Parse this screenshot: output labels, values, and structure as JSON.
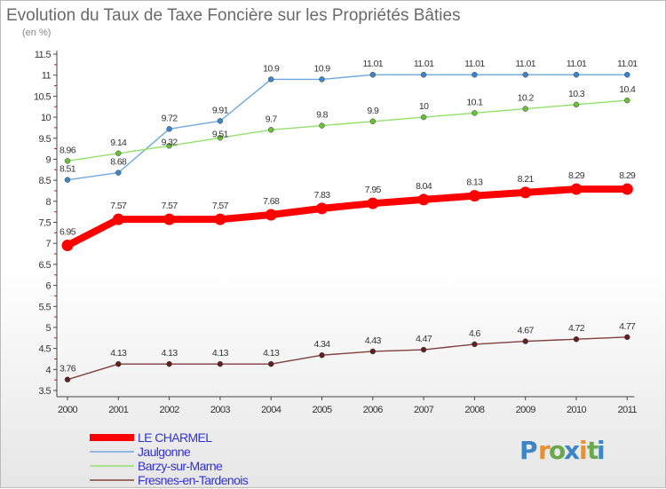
{
  "chart_data": {
    "type": "line",
    "title": "Evolution du Taux de Taxe Foncière sur les Propriétés Bâties",
    "subtitle": "(en %)",
    "xlabel": "",
    "ylabel": "",
    "x": [
      "2000",
      "2001",
      "2002",
      "2003",
      "2004",
      "2005",
      "2006",
      "2007",
      "2008",
      "2009",
      "2010",
      "2011"
    ],
    "ylim": [
      3.5,
      11.5
    ],
    "yticks": [
      "3.5",
      "4",
      "4.5",
      "5",
      "5.5",
      "6",
      "6.5",
      "7",
      "7.5",
      "8",
      "8.5",
      "9",
      "9.5",
      "10",
      "10.5",
      "11",
      "11.5"
    ],
    "grid": false,
    "legend_position": "bottom-left",
    "series": [
      {
        "name": "LE CHARMEL",
        "color": "#ff0000",
        "point_color": "#ff0000",
        "values": [
          6.95,
          7.57,
          7.57,
          7.57,
          7.68,
          7.83,
          7.95,
          8.04,
          8.13,
          8.21,
          8.29,
          8.29
        ],
        "labels": [
          "6.95",
          "7.57",
          "7.57",
          "7.57",
          "7.68",
          "7.83",
          "7.95",
          "8.04",
          "8.13",
          "8.21",
          "8.29",
          "8.29"
        ]
      },
      {
        "name": "Jaulgonne",
        "color": "#6fa8dc",
        "point_color": "#3d85c6",
        "values": [
          8.51,
          8.68,
          9.72,
          9.91,
          10.9,
          10.9,
          11.01,
          11.01,
          11.01,
          11.01,
          11.01,
          11.01
        ],
        "labels": [
          "8.51",
          "8.68",
          "9.72",
          "9.91",
          "10.9",
          "10.9",
          "11.01",
          "11.01",
          "11.01",
          "11.01",
          "11.01",
          "11.01"
        ]
      },
      {
        "name": "Barzy-sur-Marne",
        "color": "#93e06b",
        "point_color": "#6abf3a",
        "values": [
          8.96,
          9.14,
          9.32,
          9.51,
          9.7,
          9.8,
          9.9,
          10,
          10.1,
          10.2,
          10.3,
          10.4
        ],
        "labels": [
          "8.96",
          "9.14",
          "9.32",
          "9.51",
          "9.7",
          "9.8",
          "9.9",
          "10",
          "10.1",
          "10.2",
          "10.3",
          "10.4"
        ]
      },
      {
        "name": "Fresnes-en-Tardenois",
        "color": "#804040",
        "point_color": "#602020",
        "values": [
          3.76,
          4.13,
          4.13,
          4.13,
          4.13,
          4.34,
          4.43,
          4.47,
          4.6,
          4.67,
          4.72,
          4.77
        ],
        "labels": [
          "3.76",
          "4.13",
          "4.13",
          "4.13",
          "4.13",
          "4.34",
          "4.43",
          "4.47",
          "4.6",
          "4.67",
          "4.72",
          "4.77"
        ]
      }
    ]
  },
  "logo": {
    "text": "Proxiti",
    "letters": [
      "P",
      "r",
      "o",
      "x",
      "i",
      "t",
      "i"
    ],
    "colors": [
      "#3d85c6",
      "#e69138",
      "#6aa84f",
      "#3d85c6",
      "#e69138",
      "#6aa84f",
      "#3d85c6"
    ]
  }
}
